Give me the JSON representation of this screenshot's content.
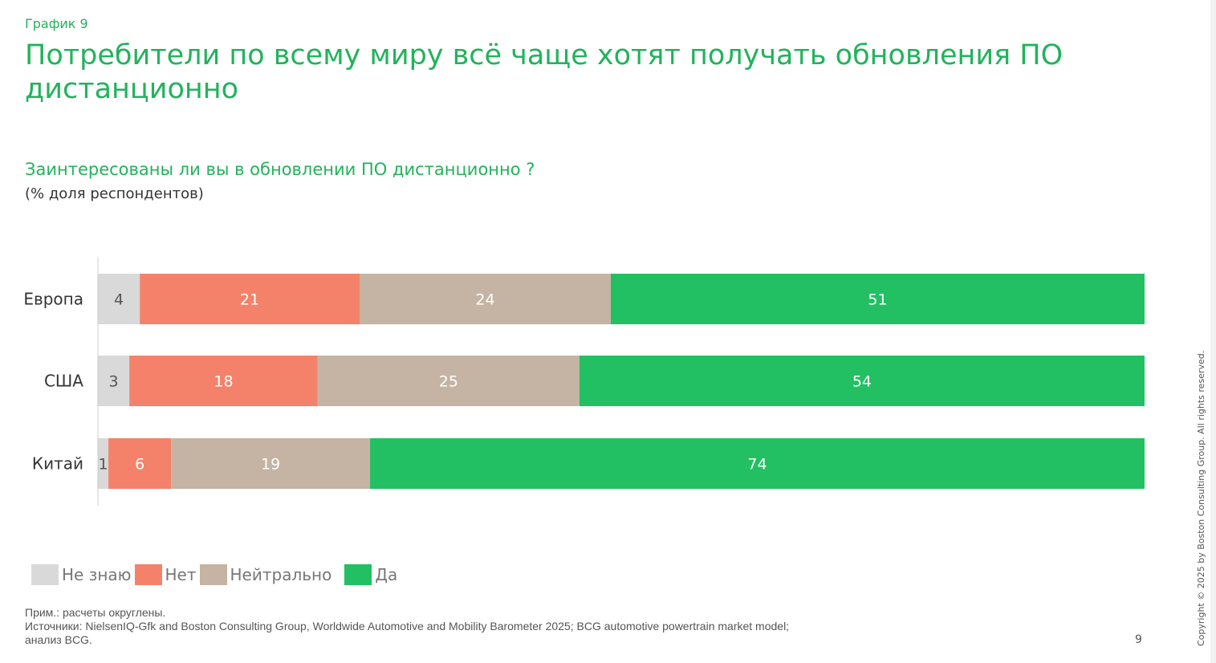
{
  "header": {
    "kicker": "График 9",
    "title": "Потребители по всему миру всё чаще хотят получать обновления ПО дистанционно"
  },
  "chart_data": {
    "type": "bar",
    "orientation": "horizontal-stacked-100",
    "title": "Заинтересованы ли вы в обновлении ПО дистанционно ?",
    "subtitle": "(% доля респондентов)",
    "categories": [
      "Европа",
      "США",
      "Китай"
    ],
    "series": [
      {
        "name": "Не знаю",
        "color": "#d9d9d9",
        "values": [
          4,
          3,
          1
        ]
      },
      {
        "name": "Нет",
        "color": "#f4826a",
        "values": [
          21,
          18,
          6
        ]
      },
      {
        "name": "Нейтрально",
        "color": "#c5b4a3",
        "values": [
          24,
          25,
          19
        ]
      },
      {
        "name": "Да",
        "color": "#22c062",
        "values": [
          51,
          54,
          74
        ]
      }
    ],
    "xlim": [
      0,
      100
    ],
    "legend": "bottom-left"
  },
  "footer": {
    "note": "Прим.: расчеты округлены.",
    "sources": "Источники: NielsenIQ-Gfk and Boston Consulting Group, Worldwide Automotive and Mobility Barometer 2025; BCG automotive powertrain market model;",
    "sources2": "анализ BCG.",
    "page": "9",
    "copyright": "Copyright © 2025 by Boston Consulting Group. All rights reserved."
  }
}
